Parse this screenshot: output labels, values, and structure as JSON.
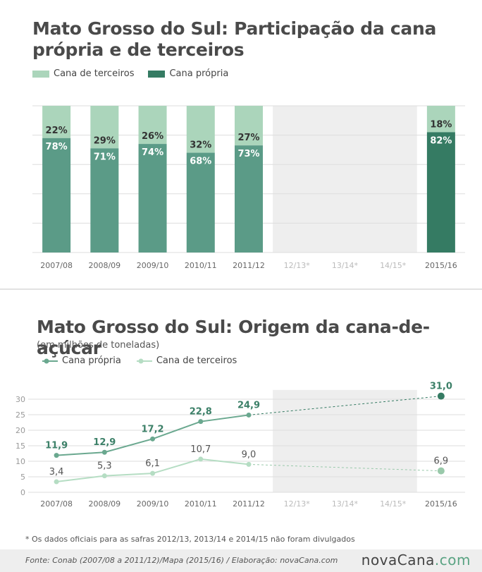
{
  "chart_data": [
    {
      "type": "bar",
      "title": "Mato Grosso do Sul: Participação da cana própria e de terceiros",
      "categories": [
        "2007/08",
        "2008/09",
        "2009/10",
        "2010/11",
        "2011/12",
        "12/13*",
        "13/14*",
        "14/15*",
        "2015/16"
      ],
      "series": [
        {
          "name": "Cana própria",
          "values": [
            78,
            71,
            74,
            68,
            73,
            null,
            null,
            null,
            82
          ],
          "labels": [
            "78%",
            "71%",
            "74%",
            "68%",
            "73%",
            null,
            null,
            null,
            "82%"
          ]
        },
        {
          "name": "Cana de terceiros",
          "values": [
            22,
            29,
            26,
            32,
            27,
            null,
            null,
            null,
            18
          ],
          "labels": [
            "22%",
            "29%",
            "26%",
            "32%",
            "27%",
            null,
            null,
            null,
            "18%"
          ]
        }
      ],
      "stacked": true,
      "ylim": [
        0,
        100
      ],
      "grid": true,
      "legend_position": "top-left",
      "unavailable_categories": [
        "12/13*",
        "13/14*",
        "14/15*"
      ],
      "colors": {
        "propria": "#5b9b87",
        "terceiros": "#abd5bb",
        "propria_highlight": "#357b63",
        "unavailable_bg": "#eeeeee"
      }
    },
    {
      "type": "line",
      "title": "Mato Grosso do Sul:  Origem da cana-de-açúcar",
      "subtitle": "(em milhões de toneladas)",
      "categories": [
        "2007/08",
        "2008/09",
        "2009/10",
        "2010/11",
        "2011/12",
        "12/13*",
        "13/14*",
        "14/15*",
        "2015/16"
      ],
      "series": [
        {
          "name": "Cana própria",
          "values": [
            11.9,
            12.9,
            17.2,
            22.8,
            24.9,
            null,
            null,
            null,
            31.0
          ],
          "labels": [
            "11,9",
            "12,9",
            "17,2",
            "22,8",
            "24,9",
            null,
            null,
            null,
            "31,0"
          ]
        },
        {
          "name": "Cana de terceiros",
          "values": [
            3.4,
            5.3,
            6.1,
            10.7,
            9.0,
            null,
            null,
            null,
            6.9
          ],
          "labels": [
            "3,4",
            "5,3",
            "6,1",
            "10,7",
            "9,0",
            null,
            null,
            null,
            "6,9"
          ]
        }
      ],
      "yticks": [
        0,
        5,
        10,
        15,
        20,
        25,
        30
      ],
      "ytick_labels": [
        "0",
        "5",
        "10",
        "15",
        "20",
        "25",
        "30"
      ],
      "ylim": [
        0,
        31
      ],
      "grid": true,
      "legend_position": "top-left",
      "dashed_gap": true,
      "colors": {
        "propria": "#6aa88f",
        "terceiros": "#b5ddc3",
        "propria_end": "#357b63",
        "label_propria": "#3c8068",
        "label_terceiros": "#555555"
      }
    }
  ],
  "footnote": "* Os dados oficiais para as safras 2012/13, 2013/14 e 2014/15 não foram divulgados",
  "footer": {
    "source": "Fonte:  Conab (2007/08 a 2011/12)/Mapa (2015/16) / Elaboração:  novaCana.com",
    "logo_a": "novaCana",
    "logo_b": ".com"
  }
}
